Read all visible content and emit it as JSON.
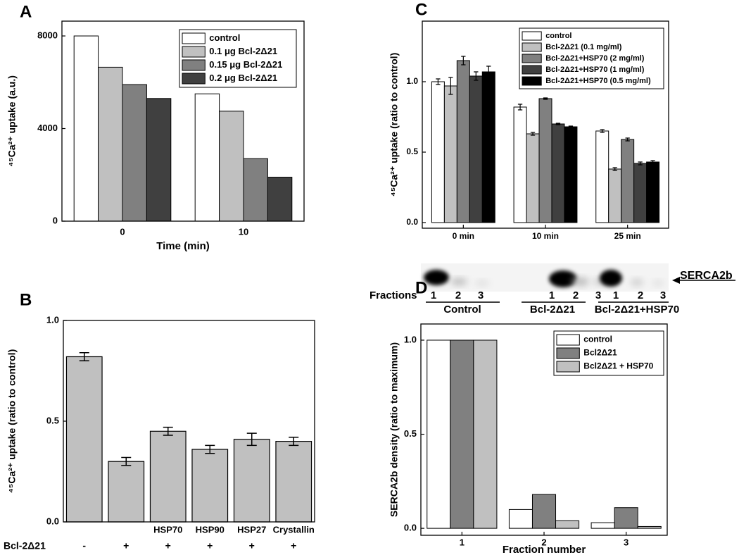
{
  "chart_data": [
    {
      "type": "bar",
      "panel_label": "A",
      "x_label": "Time (min)",
      "y_label": "⁴⁵Ca²⁺ uptake (a.u.)",
      "categories": [
        "0",
        "10"
      ],
      "series": [
        {
          "name": "control",
          "color": "#ffffff",
          "values": [
            8000,
            5500
          ]
        },
        {
          "name": "0.1 μg Bcl-2Δ21",
          "color": "#c0c0c0",
          "values": [
            6650,
            4750
          ]
        },
        {
          "name": "0.15 μg Bcl-2Δ21",
          "color": "#808080",
          "values": [
            5900,
            2700
          ]
        },
        {
          "name": "0.2 μg Bcl-2Δ21",
          "color": "#404040",
          "values": [
            5300,
            1900
          ]
        }
      ],
      "ylim": [
        0,
        8640
      ],
      "yticks": [
        0,
        4000,
        8000
      ],
      "legend": "upper right",
      "grid": false
    },
    {
      "type": "bar",
      "panel_label": "B",
      "y_label": "⁴⁵Ca²⁺ uptake (ratio to control)",
      "categories": [
        null,
        null,
        "HSP70",
        "HSP90",
        "HSP27",
        "Crystallin"
      ],
      "values": [
        0.82,
        0.3,
        0.45,
        0.36,
        0.41,
        0.4
      ],
      "errors": [
        0.02,
        0.02,
        0.02,
        0.02,
        0.03,
        0.02
      ],
      "color": "#c0c0c0",
      "row_label": "Bcl-2Δ21",
      "signs": [
        "-",
        "+",
        "+",
        "+",
        "+",
        "+"
      ],
      "ylim": [
        0,
        1
      ],
      "yticks": [
        {
          "value": 0,
          "label": "0.0"
        },
        0.5,
        {
          "value": 1,
          "label": "1.0"
        }
      ],
      "grid": false
    },
    {
      "type": "bar",
      "panel_label": "C",
      "y_label": "⁴⁵Ca²⁺ uptake (ratio to control)",
      "categories": [
        "0 min",
        "10 min",
        "25 min"
      ],
      "series": [
        {
          "name": "control",
          "color": "#ffffff",
          "values": [
            1.0,
            0.82,
            0.65
          ],
          "errors": [
            0.02,
            0.02,
            0.01
          ]
        },
        {
          "name": "Bcl-2Δ21 (0.1 mg/ml)",
          "color": "#c0c0c0",
          "values": [
            0.97,
            0.63,
            0.38
          ],
          "errors": [
            0.06,
            0.01,
            0.01
          ]
        },
        {
          "name": "Bcl-2Δ21+HSP70 (2 mg/ml)",
          "color": "#808080",
          "values": [
            1.15,
            0.88,
            0.59
          ],
          "errors": [
            0.03,
            0.005,
            0.01
          ]
        },
        {
          "name": "Bcl-2Δ21+HSP70 (1 mg/ml)",
          "color": "#404040",
          "values": [
            1.04,
            0.7,
            0.42
          ],
          "errors": [
            0.03,
            0.005,
            0.01
          ]
        },
        {
          "name": "Bcl-2Δ21+HSP70 (0.5 mg/ml)",
          "color": "#000000",
          "values": [
            1.07,
            0.68,
            0.43
          ],
          "errors": [
            0.04,
            0.005,
            0.01
          ]
        }
      ],
      "ylim": [
        -0.04,
        1.43
      ],
      "yticks": [
        {
          "value": 0,
          "label": "0.0"
        },
        0.5,
        {
          "value": 1,
          "label": "1.0"
        }
      ],
      "legend": "upper right",
      "grid": false
    },
    {
      "type": "bar",
      "panel_label": "D",
      "x_label": "Fraction number",
      "y_label": "SERCA2b density (ratio to maximum)",
      "categories": [
        "1",
        "2",
        "3"
      ],
      "series": [
        {
          "name": "control",
          "color": "#ffffff",
          "values": [
            1.0,
            0.1,
            0.03
          ]
        },
        {
          "name": "Bcl2Δ21",
          "color": "#808080",
          "values": [
            1.0,
            0.18,
            0.11
          ]
        },
        {
          "name": "Bcl2Δ21 + HSP70",
          "color": "#c0c0c0",
          "values": [
            1.0,
            0.04,
            0.01
          ]
        }
      ],
      "ylim": [
        -0.037,
        1.086
      ],
      "yticks": [
        {
          "value": 0,
          "label": "0.0"
        },
        0.5,
        {
          "value": 1,
          "label": "1.0"
        }
      ],
      "legend": "upper right",
      "grid": false
    }
  ],
  "blot": {
    "label": "SERCA2b",
    "fractions_label": "Fractions",
    "lanes": [
      "1",
      "2",
      "3"
    ],
    "groups": [
      "Control",
      "Bcl-2Δ21",
      "Bcl-2Δ21+HSP70"
    ]
  }
}
